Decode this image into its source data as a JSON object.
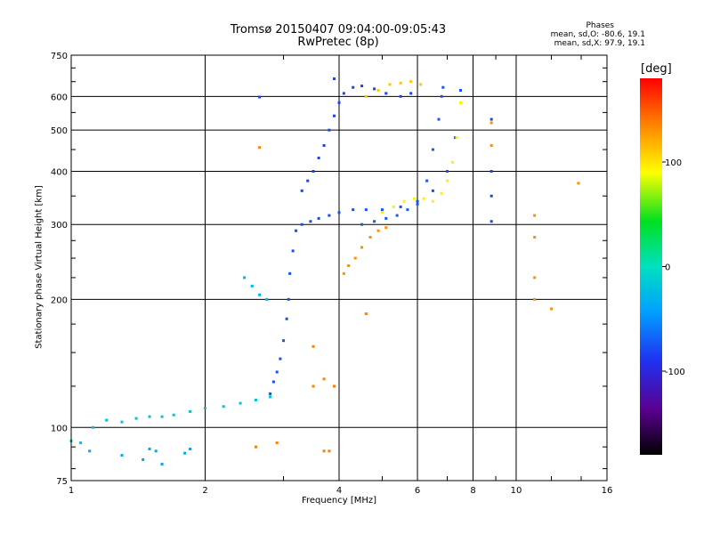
{
  "chart_data": {
    "type": "scatter",
    "title": "Tromsø 20150407 09:04:00-09:05:43",
    "subtitle": "RwPretec (8p)",
    "xlabel": "Frequency [MHz]",
    "ylabel": "Stationary phase Virtual Height [km]",
    "xscale": "log",
    "yscale": "log",
    "xlim": [
      1,
      16
    ],
    "ylim": [
      75,
      750
    ],
    "xticks": [
      1,
      2,
      4,
      6,
      8,
      10,
      16
    ],
    "xtick_labels": [
      "1",
      "2",
      "4",
      "6",
      "8",
      "10",
      "16"
    ],
    "yticks": [
      75,
      100,
      200,
      300,
      400,
      500,
      600,
      750
    ],
    "ytick_labels": [
      "75",
      "100",
      "200",
      "300",
      "400",
      "500",
      "600",
      "750"
    ],
    "grid": true,
    "phase_info": {
      "heading": "Phases",
      "line1": "mean, sd,O: -80.6, 19.1",
      "line2": "mean, sd,X:  97.9, 19.1"
    },
    "colorbar": {
      "label": "[deg]",
      "range": [
        -180,
        180
      ],
      "ticks": [
        100,
        0,
        -100
      ],
      "tick_labels": [
        "100",
        "0",
        "-100"
      ]
    },
    "series": [
      {
        "mode": "O",
        "traces": [
          {
            "x": [
              1.0,
              1.05,
              1.12,
              1.2,
              1.3,
              1.4,
              1.5,
              1.6,
              1.7,
              1.85,
              2.0,
              2.2,
              2.4,
              2.6,
              2.8
            ],
            "y": [
              93,
              92,
              100,
              104,
              103,
              105,
              106,
              106,
              107,
              109,
              111,
              112,
              114,
              116,
              118
            ],
            "phase": -20
          },
          {
            "x": [
              2.45,
              2.55,
              2.65,
              2.75
            ],
            "y": [
              225,
              215,
              205,
              200
            ],
            "phase": -30
          },
          {
            "x": [
              2.8,
              2.85,
              2.9,
              2.95,
              3.0,
              3.05,
              3.08,
              3.1,
              3.15,
              3.2,
              3.3,
              3.45,
              3.6,
              3.8,
              4.0,
              4.3,
              4.6,
              5.0,
              5.5,
              6.0,
              6.5,
              7.0,
              7.3,
              7.5
            ],
            "y": [
              120,
              128,
              135,
              145,
              160,
              180,
              200,
              230,
              260,
              290,
              300,
              305,
              310,
              315,
              320,
              325,
              325,
              325,
              330,
              340,
              360,
              400,
              480,
              620
            ],
            "phase": -85
          },
          {
            "x": [
              3.3,
              3.4,
              3.5,
              3.6,
              3.7,
              3.8,
              3.9,
              4.0,
              4.1,
              4.3,
              4.5,
              4.8,
              5.1,
              5.5,
              5.8
            ],
            "y": [
              360,
              380,
              400,
              430,
              460,
              500,
              540,
              580,
              610,
              630,
              635,
              625,
              610,
              600,
              610
            ],
            "phase": -90
          },
          {
            "x": [
              4.5,
              4.8,
              5.1,
              5.4,
              5.7,
              6.0,
              6.3,
              6.5,
              6.7,
              6.8,
              6.85
            ],
            "y": [
              300,
              305,
              310,
              315,
              325,
              335,
              380,
              450,
              530,
              600,
              630
            ],
            "phase": -80
          },
          {
            "x": [
              1.1,
              1.3,
              1.45,
              1.5,
              1.55,
              1.6,
              1.8,
              1.85
            ],
            "y": [
              88,
              86,
              84,
              89,
              88,
              82,
              87,
              89
            ],
            "phase": -40
          },
          {
            "x": [
              2.65,
              3.9,
              8.8,
              8.8,
              8.8,
              8.8
            ],
            "y": [
              598,
              660,
              530,
              400,
              350,
              305
            ],
            "phase": -90
          }
        ]
      },
      {
        "mode": "X",
        "traces": [
          {
            "x": [
              4.1,
              4.2,
              4.35,
              4.5,
              4.7,
              4.9,
              5.1
            ],
            "y": [
              230,
              240,
              250,
              265,
              280,
              290,
              295
            ],
            "phase": 130
          },
          {
            "x": [
              5.0,
              5.3,
              5.6,
              5.9,
              6.2,
              6.5,
              6.8,
              7.0,
              7.2,
              7.35,
              7.5
            ],
            "y": [
              320,
              330,
              340,
              345,
              345,
              340,
              355,
              380,
              420,
              480,
              580
            ],
            "phase": 95
          },
          {
            "x": [
              4.6,
              4.9,
              5.2,
              5.5,
              5.8,
              6.1
            ],
            "y": [
              600,
              620,
              640,
              645,
              650,
              640
            ],
            "phase": 110
          },
          {
            "x": [
              8.8,
              8.8,
              11.0,
              11.0,
              11.0,
              11.0,
              12.0,
              13.8
            ],
            "y": [
              520,
              460,
              315,
              280,
              225,
              200,
              190,
              375
            ],
            "phase": 130
          },
          {
            "x": [
              2.65,
              3.7,
              3.9,
              4.6,
              3.5,
              3.5,
              3.7,
              3.8,
              2.6,
              2.9
            ],
            "y": [
              455,
              130,
              125,
              185,
              125,
              155,
              88,
              88,
              90,
              92
            ],
            "phase": 135
          }
        ]
      }
    ]
  }
}
